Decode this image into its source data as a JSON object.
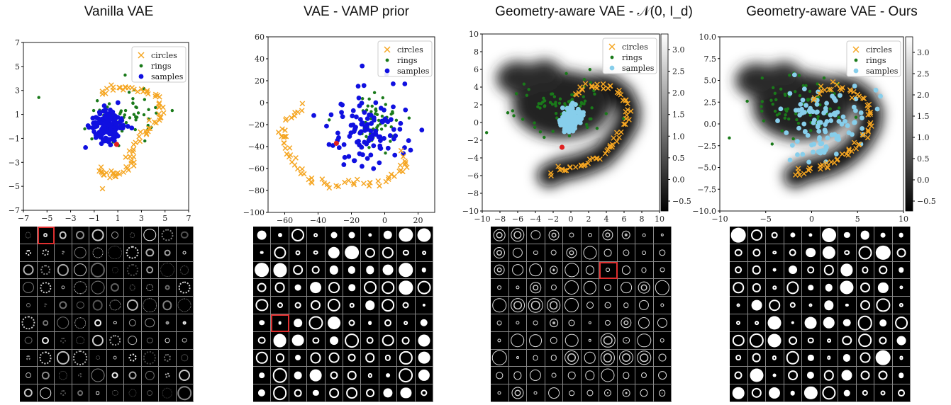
{
  "colors": {
    "circles": "#f5a623",
    "rings": "#1a7a1a",
    "samples_dark": "#1010e0",
    "samples_light": "#87ceeb",
    "red": "#e02020"
  },
  "chart_data": [
    {
      "type": "scatter",
      "title": "Vanilla VAE",
      "xlim": [
        -7,
        7
      ],
      "ylim": [
        -7,
        7
      ],
      "xticks": [
        "−7",
        "−5",
        "−3",
        "−1",
        "1",
        "3",
        "5",
        "7"
      ],
      "yticks": [
        "7",
        "5",
        "3",
        "1",
        "−1",
        "−3",
        "−5",
        "−7"
      ],
      "legend": [
        "circles",
        "rings",
        "samples"
      ],
      "legend_position": "top-right",
      "samples_color": "samples_dark",
      "circles_path": [
        [
          -0.3,
          2.5
        ],
        [
          0.5,
          3.4
        ],
        [
          1.5,
          3.3
        ],
        [
          2.7,
          3.1
        ],
        [
          3.8,
          2.8
        ],
        [
          4.6,
          2.0
        ],
        [
          4.7,
          1.2
        ],
        [
          4.2,
          0.5
        ],
        [
          3.5,
          -0.3
        ],
        [
          2.8,
          -1.0
        ],
        [
          2.2,
          -2.0
        ],
        [
          2.3,
          -2.8
        ],
        [
          1.8,
          -3.5
        ],
        [
          1.0,
          -3.8
        ],
        [
          0.3,
          -4.1
        ],
        [
          -0.3,
          -4.0
        ],
        [
          -0.5,
          -3.6
        ]
      ],
      "extra_circles": [
        [
          -0.3,
          -5.2
        ]
      ],
      "rings_center": [
        1.5,
        0.8
      ],
      "rings_spread": [
        3.2,
        2.0
      ],
      "rings_n": 70,
      "samples_center": [
        0.2,
        0.0
      ],
      "samples_spread": [
        1.4,
        1.4
      ],
      "samples_n": 130,
      "red": [
        0.9,
        -1.5
      ],
      "images": {
        "rows": 10,
        "cols": 10,
        "highlight": [
          1,
          0
        ]
      }
    },
    {
      "type": "scatter",
      "title": "VAE - VAMP prior",
      "xlim": [
        -70,
        30
      ],
      "ylim": [
        -100,
        60
      ],
      "xticks": [
        "−60",
        "−40",
        "−20",
        "0",
        "20"
      ],
      "xtick_vals": [
        -60,
        -40,
        -20,
        0,
        20
      ],
      "yticks": [
        "60",
        "40",
        "20",
        "0",
        "−20",
        "−40",
        "−60",
        "−80",
        "−100"
      ],
      "ytick_vals": [
        60,
        40,
        20,
        0,
        -20,
        -40,
        -60,
        -80,
        -100
      ],
      "legend": [
        "circles",
        "rings",
        "samples"
      ],
      "legend_position": "top-right",
      "samples_color": "samples_dark",
      "circles_path": [
        [
          -50,
          -5
        ],
        [
          -57,
          -15
        ],
        [
          -62,
          -25
        ],
        [
          -60,
          -35
        ],
        [
          -57,
          -48
        ],
        [
          -52,
          -60
        ],
        [
          -45,
          -70
        ],
        [
          -35,
          -75
        ],
        [
          -22,
          -76
        ],
        [
          -10,
          -74
        ],
        [
          0,
          -72
        ],
        [
          8,
          -65
        ],
        [
          12,
          -55
        ],
        [
          10,
          -45
        ]
      ],
      "extra_circles": [],
      "rings_center": [
        -5,
        -15
      ],
      "rings_spread": [
        13,
        20
      ],
      "rings_n": 60,
      "samples_center": [
        -10,
        -25
      ],
      "samples_spread": [
        22,
        35
      ],
      "samples_n": 110,
      "red": [
        -29,
        -37
      ],
      "images": {
        "rows": 10,
        "cols": 10,
        "highlight": [
          1,
          5
        ]
      }
    },
    {
      "type": "scatter",
      "title": "Geometry-aware VAE - 𝒩(0, I_d)",
      "xlim": [
        -10,
        10
      ],
      "ylim": [
        -10,
        10
      ],
      "xticks": [
        "−10",
        "−8",
        "−6",
        "−4",
        "−2",
        "0",
        "2",
        "4",
        "6",
        "8",
        "10"
      ],
      "yticks": [
        "10",
        "8",
        "6",
        "4",
        "2",
        "0",
        "−2",
        "−4",
        "−6",
        "−8",
        "−10"
      ],
      "legend": [
        "circles",
        "rings",
        "samples"
      ],
      "legend_position": "top-right",
      "samples_color": "samples_light",
      "colorbar_ticks": [
        "3.0",
        "2.5",
        "2.0",
        "1.5",
        "1.0",
        "0.5",
        "0.0",
        "−0.5"
      ],
      "circles_path": [
        [
          0.5,
          3.0
        ],
        [
          1.5,
          4.0
        ],
        [
          3,
          4.2
        ],
        [
          4.5,
          4.0
        ],
        [
          5.8,
          3.0
        ],
        [
          6.5,
          1.5
        ],
        [
          6.4,
          0
        ],
        [
          5.5,
          -1.5
        ],
        [
          4.5,
          -2.8
        ],
        [
          3.5,
          -3.8
        ],
        [
          2,
          -4.5
        ],
        [
          0.5,
          -5.0
        ],
        [
          -1,
          -5.3
        ],
        [
          -2.5,
          -6.0
        ]
      ],
      "extra_circles": [],
      "rings_center": [
        -1,
        2
      ],
      "rings_spread": [
        5,
        3
      ],
      "rings_n": 80,
      "samples_center": [
        0,
        0.3
      ],
      "samples_spread": [
        1.0,
        1.2
      ],
      "samples_n": 140,
      "red": [
        -1,
        -2.8
      ],
      "images": {
        "rows": 10,
        "cols": 10,
        "highlight": [
          6,
          2
        ]
      }
    },
    {
      "type": "scatter",
      "title": "Geometry-aware VAE - Ours",
      "xlim": [
        -10,
        10
      ],
      "ylim": [
        -10,
        10
      ],
      "xticks": [
        "−10",
        "−5",
        "0",
        "5",
        "10"
      ],
      "xtick_vals": [
        -10,
        -5,
        0,
        5,
        10
      ],
      "yticks": [
        "10.0",
        "7.5",
        "5.0",
        "2.5",
        "0.0",
        "−2.5",
        "−5.0",
        "−7.5",
        "−10.0"
      ],
      "ytick_vals": [
        10,
        7.5,
        5,
        2.5,
        0,
        -2.5,
        -5,
        -7.5,
        -10
      ],
      "legend": [
        "circles",
        "rings",
        "samples"
      ],
      "legend_position": "top-right",
      "samples_color": "samples_light",
      "colorbar_ticks": [
        "3.0",
        "2.5",
        "2.0",
        "1.5",
        "1.0",
        "0.5",
        "0.0",
        "−0.5"
      ],
      "circles_path": [
        [
          0.3,
          3.0
        ],
        [
          1.5,
          4.0
        ],
        [
          3,
          4.2
        ],
        [
          4.5,
          3.8
        ],
        [
          5.8,
          2.8
        ],
        [
          6.5,
          1.3
        ],
        [
          6.3,
          -0.2
        ],
        [
          5.5,
          -1.7
        ],
        [
          4.5,
          -2.9
        ],
        [
          3.3,
          -3.9
        ],
        [
          2,
          -4.6
        ],
        [
          0.5,
          -5.1
        ],
        [
          -1,
          -5.5
        ],
        [
          -1.8,
          -6.0
        ]
      ],
      "extra_circles": [],
      "rings_center": [
        -1,
        2
      ],
      "rings_spread": [
        5,
        3
      ],
      "rings_n": 70,
      "samples_center": [
        1,
        0
      ],
      "samples_spread": [
        5,
        4
      ],
      "samples_n": 110,
      "red": null,
      "images": {
        "rows": 10,
        "cols": 10,
        "highlight": null
      }
    }
  ]
}
